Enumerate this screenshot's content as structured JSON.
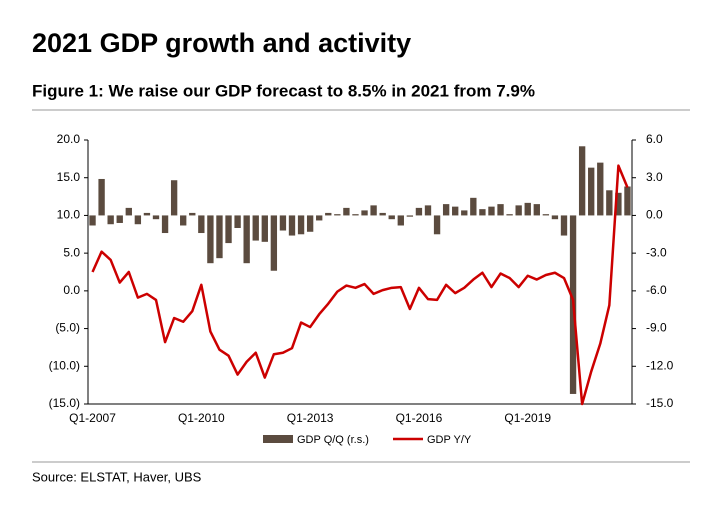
{
  "chart_data": {
    "type": "bar-line",
    "title": "2021 GDP growth and activity",
    "subtitle": "Figure 1: We raise our GDP forecast to 8.5% in 2021 from 7.9%",
    "source": "Source: ELSTAT, Haver, UBS",
    "categories": [
      "Q1-2007",
      null,
      null,
      null,
      null,
      null,
      null,
      null,
      null,
      null,
      null,
      null,
      "Q1-2010",
      null,
      null,
      null,
      null,
      null,
      null,
      null,
      null,
      null,
      null,
      null,
      "Q1-2013",
      null,
      null,
      null,
      null,
      null,
      null,
      null,
      null,
      null,
      null,
      null,
      "Q1-2016",
      null,
      null,
      null,
      null,
      null,
      null,
      null,
      null,
      null,
      null,
      null,
      "Q1-2019",
      null,
      null,
      null,
      null,
      null,
      null,
      null,
      null,
      null,
      null,
      null
    ],
    "series": [
      {
        "name": "GDP Q/Q (r.s.)",
        "color": "#5b4b3f",
        "axis": "y2",
        "kind": "bar",
        "values": [
          -0.8,
          2.9,
          -0.7,
          -0.6,
          0.6,
          -0.7,
          0.2,
          -0.3,
          -1.4,
          2.8,
          -0.8,
          0.2,
          -1.4,
          -3.8,
          -3.4,
          -2.2,
          -1.0,
          -3.8,
          -2.0,
          -2.1,
          -4.4,
          -1.2,
          -1.6,
          -1.5,
          -1.3,
          -0.4,
          0.2,
          0.1,
          0.6,
          0.1,
          0.4,
          0.8,
          0.2,
          -0.3,
          -0.8,
          -0.1,
          0.6,
          0.8,
          -1.5,
          0.9,
          0.7,
          0.4,
          1.4,
          0.5,
          0.7,
          0.9,
          0.1,
          0.8,
          1.0,
          0.9,
          0.1,
          -0.3,
          -1.6,
          -14.2,
          5.5,
          3.8,
          4.2,
          2.0,
          1.8,
          2.3
        ]
      },
      {
        "name": "GDP Y/Y",
        "color": "#cc0000",
        "kind": "line",
        "values": [
          2.5,
          5.2,
          4.1,
          1.1,
          2.5,
          -0.9,
          -0.4,
          -1.2,
          -6.8,
          -3.6,
          -4.1,
          -2.7,
          0.8,
          -5.4,
          -7.8,
          -8.6,
          -11.1,
          -9.4,
          -8.2,
          -11.5,
          -8.4,
          -8.2,
          -7.6,
          -4.2,
          -4.8,
          -3.1,
          -1.7,
          -0.1,
          0.7,
          0.4,
          0.9,
          -0.4,
          0.1,
          0.4,
          0.5,
          -2.4,
          0.4,
          -1.1,
          -1.2,
          0.8,
          -0.3,
          0.4,
          1.5,
          2.4,
          0.5,
          2.3,
          1.7,
          0.5,
          2.0,
          1.5,
          2.1,
          2.4,
          1.7,
          -1.2,
          -15.0,
          -10.7,
          -7.0,
          -1.9,
          16.6,
          13.7
        ]
      }
    ],
    "ylim": [
      -15,
      20
    ],
    "yticks": [
      {
        "value": 20,
        "label": "20.0"
      },
      {
        "value": 15,
        "label": "15.0"
      },
      {
        "value": 10,
        "label": "10.0"
      },
      {
        "value": 5,
        "label": "5.0"
      },
      {
        "value": 0,
        "label": "0.0"
      },
      {
        "value": -5,
        "label": "(5.0)"
      },
      {
        "value": -10,
        "label": "(10.0)"
      },
      {
        "value": -15,
        "label": "(15.0)"
      }
    ],
    "y2lim": [
      -15,
      6
    ],
    "y2ticks": [
      {
        "value": 6,
        "label": "6.0"
      },
      {
        "value": 3,
        "label": "3.0"
      },
      {
        "value": 0,
        "label": "0.0"
      },
      {
        "value": -3,
        "label": "-3.0"
      },
      {
        "value": -6,
        "label": "-6.0"
      },
      {
        "value": -9,
        "label": "-9.0"
      },
      {
        "value": -12,
        "label": "-12.0"
      },
      {
        "value": -15,
        "label": "-15.0"
      }
    ]
  }
}
